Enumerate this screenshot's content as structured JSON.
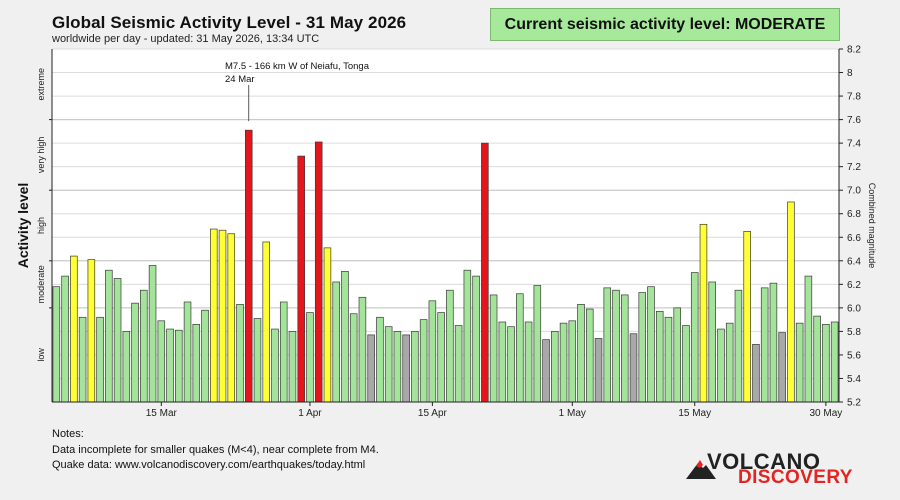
{
  "header": {
    "title": "Global Seismic Activity Level - 31 May 2026",
    "subtitle": "worldwide per day - updated: 31 May 2026, 13:34 UTC",
    "current_level": "Current seismic activity level: MODERATE"
  },
  "notes": {
    "heading": "Notes:",
    "line1": "Data incomplete for smaller quakes (M<4), near complete from M4.",
    "line2": "Quake data: www.volcanodiscovery.com/earthquakes/today.html"
  },
  "logo": {
    "line1": "VOLCANO",
    "line2": "DISCOVERY"
  },
  "colors": {
    "green": "#a3e49a",
    "yellow": "#ffff33",
    "red": "#e4161b",
    "gray": "#a8a8a8",
    "box": "#a7e99a"
  },
  "chart_data": {
    "type": "bar",
    "ylabel": "Activity level",
    "y2label": "Combined magnitude",
    "ylim": [
      5.2,
      8.2
    ],
    "yticks": [
      5.2,
      5.4,
      5.6,
      5.8,
      6.0,
      6.2,
      6.4,
      6.6,
      6.8,
      7.0,
      7.2,
      7.4,
      7.6,
      7.8,
      8.0,
      8.2
    ],
    "level_bands": [
      "low",
      "moderate",
      "high",
      "very high",
      "extreme"
    ],
    "grid": true,
    "x_ticks": [
      "15 Mar",
      "1 Apr",
      "15 Apr",
      "1 May",
      "15 May",
      "30 May"
    ],
    "values": [
      6.18,
      6.27,
      6.44,
      5.92,
      6.41,
      5.92,
      6.32,
      6.25,
      5.8,
      6.04,
      6.15,
      6.36,
      5.89,
      5.82,
      5.81,
      6.05,
      5.86,
      5.98,
      6.67,
      6.66,
      6.63,
      6.03,
      7.51,
      5.91,
      6.56,
      5.82,
      6.05,
      5.8,
      7.29,
      5.96,
      7.41,
      6.51,
      6.22,
      6.31,
      5.95,
      6.09,
      5.77,
      5.92,
      5.84,
      5.8,
      5.77,
      5.8,
      5.9,
      6.06,
      5.96,
      6.15,
      5.85,
      6.32,
      6.27,
      7.4,
      6.11,
      5.88,
      5.84,
      6.12,
      5.88,
      6.19,
      5.73,
      5.8,
      5.87,
      5.89,
      6.03,
      5.99,
      5.74,
      6.17,
      6.15,
      6.11,
      5.78,
      6.13,
      6.18,
      5.97,
      5.92,
      6.0,
      5.85,
      6.3,
      6.71,
      6.22,
      5.82,
      5.87,
      6.15,
      6.65,
      5.69,
      6.17,
      6.21,
      5.79,
      6.9,
      5.87,
      6.27,
      5.93,
      5.86,
      5.88
    ],
    "categories_color": [
      "g",
      "g",
      "y",
      "g",
      "y",
      "g",
      "g",
      "g",
      "g",
      "g",
      "g",
      "g",
      "g",
      "g",
      "g",
      "g",
      "g",
      "g",
      "y",
      "y",
      "y",
      "g",
      "r",
      "g",
      "y",
      "g",
      "g",
      "g",
      "r",
      "g",
      "r",
      "y",
      "g",
      "g",
      "g",
      "g",
      "x",
      "g",
      "g",
      "g",
      "x",
      "g",
      "g",
      "g",
      "g",
      "g",
      "g",
      "g",
      "g",
      "r",
      "g",
      "g",
      "g",
      "g",
      "g",
      "g",
      "x",
      "g",
      "g",
      "g",
      "g",
      "g",
      "x",
      "g",
      "g",
      "g",
      "x",
      "g",
      "g",
      "g",
      "g",
      "g",
      "g",
      "g",
      "y",
      "g",
      "g",
      "g",
      "g",
      "y",
      "x",
      "g",
      "g",
      "x",
      "y",
      "g",
      "g",
      "g",
      "g",
      "g"
    ],
    "annotation": {
      "line1": "M7.5 - 166 km W of Neiafu, Tonga",
      "line2": "24 Mar",
      "bar_index": 22
    }
  }
}
